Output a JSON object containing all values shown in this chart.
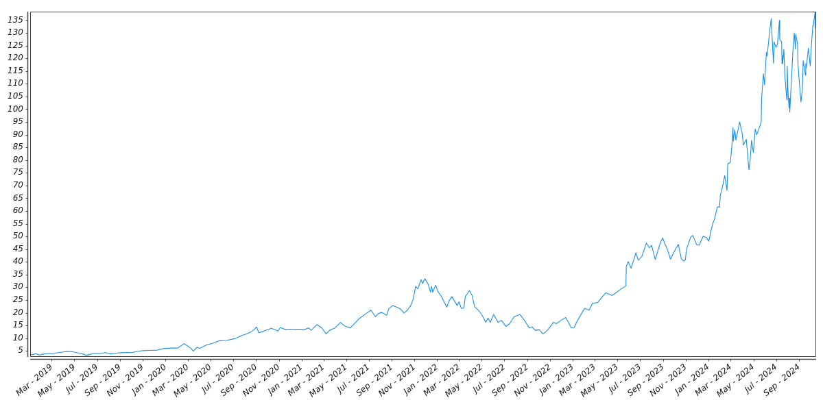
{
  "chart_data": {
    "type": "line",
    "x": [
      "2019-01-02",
      "2019-01-10",
      "2019-01-18",
      "2019-01-28",
      "2019-02-01",
      "2019-02-15",
      "2019-03-01",
      "2019-03-20",
      "2019-04-10",
      "2019-04-24",
      "2019-05-13",
      "2019-05-20",
      "2019-06-03",
      "2019-06-19",
      "2019-07-10",
      "2019-07-24",
      "2019-08-05",
      "2019-08-16",
      "2019-08-29",
      "2019-09-20",
      "2019-10-03",
      "2019-10-14",
      "2019-11-01",
      "2019-11-20",
      "2019-12-10",
      "2019-12-27",
      "2020-01-17",
      "2020-02-03",
      "2020-02-20",
      "2020-03-02",
      "2020-03-09",
      "2020-03-16",
      "2020-03-26",
      "2020-04-02",
      "2020-04-20",
      "2020-05-04",
      "2020-05-26",
      "2020-06-12",
      "2020-07-06",
      "2020-07-20",
      "2020-08-11",
      "2020-08-25",
      "2020-09-02",
      "2020-09-08",
      "2020-09-21",
      "2020-10-12",
      "2020-10-30",
      "2020-11-05",
      "2020-11-20",
      "2020-12-02",
      "2020-12-18",
      "2021-01-08",
      "2021-01-20",
      "2021-01-27",
      "2021-02-12",
      "2021-02-25",
      "2021-03-08",
      "2021-03-18",
      "2021-04-01",
      "2021-04-16",
      "2021-04-27",
      "2021-05-12",
      "2021-05-21",
      "2021-06-04",
      "2021-06-22",
      "2021-07-07",
      "2021-07-19",
      "2021-07-27",
      "2021-08-06",
      "2021-08-18",
      "2021-08-24",
      "2021-09-03",
      "2021-09-14",
      "2021-09-24",
      "2021-10-04",
      "2021-10-13",
      "2021-10-22",
      "2021-10-29",
      "2021-11-04",
      "2021-11-10",
      "2021-11-19",
      "2021-11-23",
      "2021-11-29",
      "2021-12-08",
      "2021-12-14",
      "2021-12-17",
      "2021-12-20",
      "2021-12-28",
      "2022-01-04",
      "2022-01-11",
      "2022-01-27",
      "2022-02-02",
      "2022-02-10",
      "2022-02-24",
      "2022-03-01",
      "2022-03-07",
      "2022-03-14",
      "2022-03-18",
      "2022-03-29",
      "2022-04-05",
      "2022-04-12",
      "2022-04-22",
      "2022-05-02",
      "2022-05-12",
      "2022-05-18",
      "2022-05-24",
      "2022-06-02",
      "2022-06-14",
      "2022-06-23",
      "2022-07-05",
      "2022-07-15",
      "2022-07-27",
      "2022-08-03",
      "2022-08-12",
      "2022-08-24",
      "2022-09-06",
      "2022-09-14",
      "2022-09-22",
      "2022-10-03",
      "2022-10-13",
      "2022-10-25",
      "2022-11-10",
      "2022-11-18",
      "2022-11-30",
      "2022-12-13",
      "2022-12-28",
      "2023-01-05",
      "2023-01-12",
      "2023-01-27",
      "2023-02-02",
      "2023-02-14",
      "2023-02-23",
      "2023-03-09",
      "2023-03-24",
      "2023-03-31",
      "2023-04-17",
      "2023-05-08",
      "2023-05-24",
      "2023-05-25",
      "2023-05-30",
      "2023-06-07",
      "2023-06-20",
      "2023-06-26",
      "2023-07-06",
      "2023-07-18",
      "2023-07-26",
      "2023-08-01",
      "2023-08-11",
      "2023-08-24",
      "2023-08-31",
      "2023-09-06",
      "2023-09-12",
      "2023-09-21",
      "2023-09-29",
      "2023-10-12",
      "2023-10-20",
      "2023-10-26",
      "2023-10-31",
      "2023-11-03",
      "2023-11-14",
      "2023-11-20",
      "2023-11-30",
      "2023-12-07",
      "2023-12-18",
      "2023-12-27",
      "2024-01-02",
      "2024-01-08",
      "2024-01-12",
      "2024-01-18",
      "2024-01-25",
      "2024-01-31",
      "2024-02-02",
      "2024-02-08",
      "2024-02-14",
      "2024-02-20",
      "2024-02-22",
      "2024-02-29",
      "2024-03-04",
      "2024-03-07",
      "2024-03-08",
      "2024-03-12",
      "2024-03-15",
      "2024-03-25",
      "2024-04-01",
      "2024-04-04",
      "2024-04-12",
      "2024-04-19",
      "2024-04-22",
      "2024-04-26",
      "2024-05-01",
      "2024-05-06",
      "2024-05-10",
      "2024-05-22",
      "2024-05-23",
      "2024-05-28",
      "2024-05-31",
      "2024-06-05",
      "2024-06-07",
      "2024-06-13",
      "2024-06-18",
      "2024-06-21",
      "2024-06-24",
      "2024-06-26",
      "2024-07-01",
      "2024-07-05",
      "2024-07-10",
      "2024-07-11",
      "2024-07-16",
      "2024-07-17",
      "2024-07-18",
      "2024-07-19",
      "2024-07-22",
      "2024-07-25",
      "2024-07-30",
      "2024-07-31",
      "2024-08-02",
      "2024-08-05",
      "2024-08-06",
      "2024-08-07",
      "2024-08-09",
      "2024-08-13",
      "2024-08-16",
      "2024-08-19",
      "2024-08-22",
      "2024-08-23",
      "2024-08-28",
      "2024-08-29",
      "2024-09-03",
      "2024-09-06",
      "2024-09-10",
      "2024-09-12",
      "2024-09-18",
      "2024-09-19",
      "2024-09-20",
      "2024-09-26",
      "2024-10-01",
      "2024-10-04",
      "2024-10-08",
      "2024-10-09",
      "2024-10-11",
      "2024-10-14",
      "2024-10-15"
    ],
    "series": [
      {
        "color": "#1a8fe3",
        "values": [
          3.4,
          3.6,
          3.9,
          3.3,
          3.6,
          3.9,
          3.9,
          4.3,
          4.8,
          4.7,
          4.1,
          4.0,
          3.2,
          3.9,
          3.9,
          4.3,
          3.8,
          3.9,
          4.2,
          4.4,
          4.3,
          4.7,
          5.1,
          5.2,
          5.3,
          5.9,
          6.1,
          6.1,
          7.8,
          6.8,
          6.1,
          4.9,
          6.4,
          6.0,
          7.3,
          7.8,
          9.0,
          9.1,
          9.8,
          10.8,
          11.9,
          13.1,
          14.4,
          12.1,
          12.7,
          13.9,
          12.8,
          14.2,
          13.3,
          13.4,
          13.3,
          13.3,
          14.0,
          13.1,
          15.3,
          14.0,
          11.7,
          13.1,
          14.0,
          16.2,
          14.8,
          14.0,
          15.3,
          17.5,
          19.5,
          21.0,
          18.4,
          19.7,
          20.1,
          19.0,
          21.5,
          22.8,
          22.2,
          21.5,
          19.9,
          21.0,
          22.8,
          25.5,
          30.3,
          29.4,
          33.0,
          31.5,
          33.4,
          31.2,
          28.1,
          30.3,
          28.1,
          30.8,
          28.1,
          26.8,
          22.2,
          24.6,
          26.3,
          22.8,
          24.3,
          21.7,
          21.9,
          26.4,
          28.7,
          26.8,
          22.3,
          21.0,
          19.0,
          16.2,
          17.9,
          16.2,
          19.3,
          16.2,
          17.0,
          14.6,
          15.7,
          18.4,
          18.8,
          19.3,
          17.0,
          14.0,
          14.4,
          13.1,
          13.3,
          11.6,
          13.1,
          16.2,
          15.7,
          17.0,
          18.1,
          14.1,
          14.2,
          16.5,
          20.3,
          21.7,
          21.0,
          23.7,
          24.0,
          26.7,
          27.8,
          26.8,
          29.0,
          30.6,
          38.0,
          40.1,
          37.5,
          43.6,
          40.6,
          42.2,
          47.4,
          45.5,
          46.5,
          40.9,
          47.2,
          49.4,
          47.0,
          45.1,
          41.0,
          43.5,
          46.9,
          41.3,
          40.3,
          40.8,
          45.0,
          49.6,
          50.4,
          46.8,
          46.5,
          50.1,
          49.5,
          48.1,
          52.2,
          54.7,
          57.1,
          61.6,
          61.5,
          66.1,
          69.6,
          73.9,
          68.0,
          78.5,
          79.1,
          85.2,
          92.7,
          87.5,
          91.9,
          87.8,
          95.0,
          90.4,
          85.9,
          88.1,
          76.2,
          79.5,
          87.7,
          83.0,
          92.2,
          89.9,
          94.9,
          103.8,
          114.0,
          109.6,
          122.4,
          120.9,
          129.6,
          135.6,
          126.6,
          118.1,
          126.4,
          124.3,
          125.8,
          134.9,
          127.4,
          126.4,
          118.0,
          121.1,
          117.9,
          123.5,
          112.3,
          103.7,
          117.0,
          107.3,
          100.5,
          104.3,
          98.9,
          104.8,
          116.1,
          124.6,
          130.0,
          123.7,
          129.4,
          125.6,
          117.6,
          108.0,
          102.8,
          108.1,
          119.1,
          113.4,
          117.9,
          116.0,
          124.0,
          117.0,
          124.9,
          132.9,
          132.7,
          134.8,
          138.1,
          131.6
        ]
      }
    ],
    "xlim": [
      "2019-01-02",
      "2024-10-15"
    ],
    "xticks": [
      {
        "value": "2019-03",
        "label": "Mar - 2019"
      },
      {
        "value": "2019-05",
        "label": "May - 2019"
      },
      {
        "value": "2019-07",
        "label": "Jul - 2019"
      },
      {
        "value": "2019-09",
        "label": "Sep - 2019"
      },
      {
        "value": "2019-11",
        "label": "Nov - 2019"
      },
      {
        "value": "2020-01",
        "label": "Jan - 2020"
      },
      {
        "value": "2020-03",
        "label": "Mar - 2020"
      },
      {
        "value": "2020-05",
        "label": "May - 2020"
      },
      {
        "value": "2020-07",
        "label": "Jul - 2020"
      },
      {
        "value": "2020-09",
        "label": "Sep - 2020"
      },
      {
        "value": "2020-11",
        "label": "Nov - 2020"
      },
      {
        "value": "2021-01",
        "label": "Jan - 2021"
      },
      {
        "value": "2021-03",
        "label": "Mar - 2021"
      },
      {
        "value": "2021-05",
        "label": "May - 2021"
      },
      {
        "value": "2021-07",
        "label": "Jul - 2021"
      },
      {
        "value": "2021-09",
        "label": "Sep - 2021"
      },
      {
        "value": "2021-11",
        "label": "Nov - 2021"
      },
      {
        "value": "2022-01",
        "label": "Jan - 2022"
      },
      {
        "value": "2022-03",
        "label": "Mar - 2022"
      },
      {
        "value": "2022-05",
        "label": "May - 2022"
      },
      {
        "value": "2022-07",
        "label": "Jul - 2022"
      },
      {
        "value": "2022-09",
        "label": "Sep - 2022"
      },
      {
        "value": "2022-11",
        "label": "Nov - 2022"
      },
      {
        "value": "2023-01",
        "label": "Jan - 2023"
      },
      {
        "value": "2023-03",
        "label": "Mar - 2023"
      },
      {
        "value": "2023-05",
        "label": "May - 2023"
      },
      {
        "value": "2023-07",
        "label": "Jul - 2023"
      },
      {
        "value": "2023-09",
        "label": "Sep - 2023"
      },
      {
        "value": "2023-11",
        "label": "Nov - 2023"
      },
      {
        "value": "2024-01",
        "label": "Jan - 2024"
      },
      {
        "value": "2024-03",
        "label": "Mar - 2024"
      },
      {
        "value": "2024-05",
        "label": "May - 2024"
      },
      {
        "value": "2024-07",
        "label": "Jul - 2024"
      },
      {
        "value": "2024-09",
        "label": "Sep - 2024"
      }
    ],
    "ylim": [
      2.9,
      138.3
    ],
    "yticks": [
      5,
      10,
      15,
      20,
      25,
      30,
      35,
      40,
      45,
      50,
      55,
      60,
      65,
      70,
      75,
      80,
      85,
      90,
      95,
      100,
      105,
      110,
      115,
      120,
      125,
      130,
      135
    ],
    "line_style": "solid"
  }
}
